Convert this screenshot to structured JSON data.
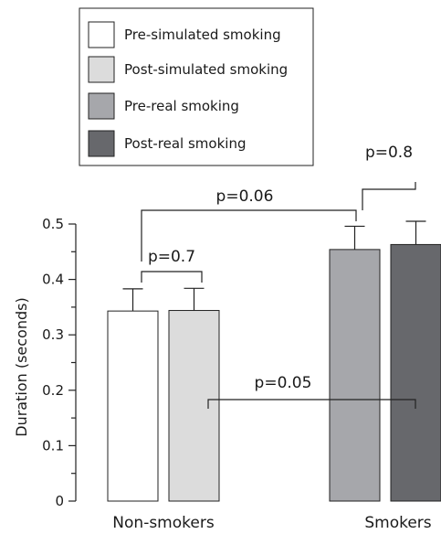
{
  "chart_data": {
    "type": "bar",
    "title": "",
    "xlabel": "",
    "ylabel": "Duration (seconds)",
    "ylim": [
      0,
      0.5
    ],
    "yticks": [
      "0",
      "0.1",
      "0.2",
      "0.3",
      "0.4",
      "0.5"
    ],
    "categories": [
      "Non-smokers",
      "Smokers"
    ],
    "series": [
      {
        "name": "Pre-simulated smoking",
        "category": "Non-smokers",
        "value": 0.343,
        "error": 0.04,
        "color": "#ffffff"
      },
      {
        "name": "Post-simulated smoking",
        "category": "Non-smokers",
        "value": 0.344,
        "error": 0.04,
        "color": "#dcdcdc"
      },
      {
        "name": "Pre-real smoking",
        "category": "Smokers",
        "value": 0.454,
        "error": 0.042,
        "color": "#a6a7ab"
      },
      {
        "name": "Post-real smoking",
        "category": "Smokers",
        "value": 0.463,
        "error": 0.042,
        "color": "#67686c"
      }
    ],
    "comparisons": [
      {
        "label": "p=0.7",
        "between": [
          "Pre-simulated smoking",
          "Post-simulated smoking"
        ]
      },
      {
        "label": "p=0.8",
        "between": [
          "Pre-real smoking",
          "Post-real smoking"
        ]
      },
      {
        "label": "p=0.06",
        "between": [
          "Non-smokers",
          "Smokers"
        ]
      },
      {
        "label": "p=0.05",
        "between": [
          "Post-simulated smoking",
          "Post-real smoking"
        ]
      }
    ],
    "legend": "top-left",
    "grid": false
  }
}
